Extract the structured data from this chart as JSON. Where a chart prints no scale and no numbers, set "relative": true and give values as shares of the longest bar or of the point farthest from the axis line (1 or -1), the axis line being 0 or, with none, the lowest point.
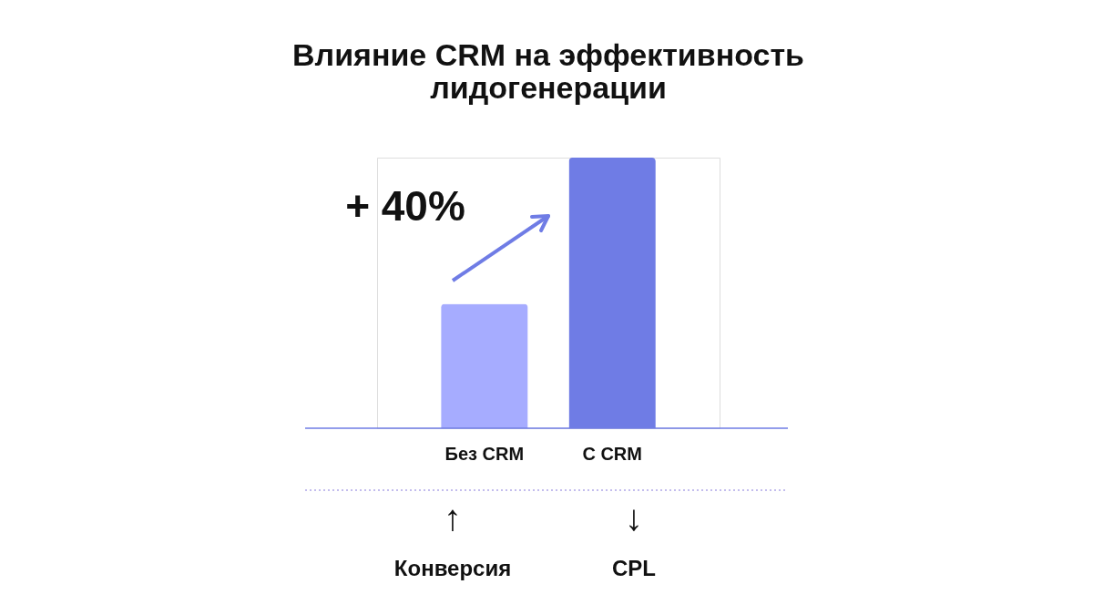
{
  "chart_data": {
    "type": "bar",
    "title": "Влияние CRM на эффективность\nлидогенерации",
    "categories": [
      "Без CRM",
      "С CRM"
    ],
    "values": [
      0.46,
      1
    ],
    "colors": [
      "#a6acff",
      "#6f7ce5"
    ],
    "relative": true,
    "annotations": [
      "+ 40%",
      "↑",
      "Конверсия",
      "↓",
      "CPL"
    ]
  }
}
